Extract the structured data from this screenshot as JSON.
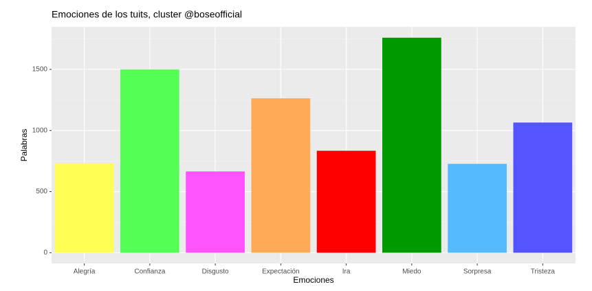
{
  "chart_data": {
    "type": "bar",
    "title": "Emociones de los tuits, cluster @boseofficial",
    "x_label": "Emociones",
    "y_label": "Palabras",
    "categories": [
      "Alegría",
      "Confianza",
      "Disgusto",
      "Expectación",
      "Ira",
      "Miedo",
      "Sorpresa",
      "Tristeza"
    ],
    "values": [
      733,
      1500,
      665,
      1263,
      834,
      1759,
      727,
      1065
    ],
    "colors": [
      "#FFFF55",
      "#55FF55",
      "#FF55FF",
      "#FFAA55",
      "#FF0000",
      "#009900",
      "#55BBFF",
      "#5555FF"
    ],
    "ylim": [
      -88,
      1848
    ],
    "yticks": [
      0,
      500,
      1000,
      1500
    ],
    "grid": true
  }
}
